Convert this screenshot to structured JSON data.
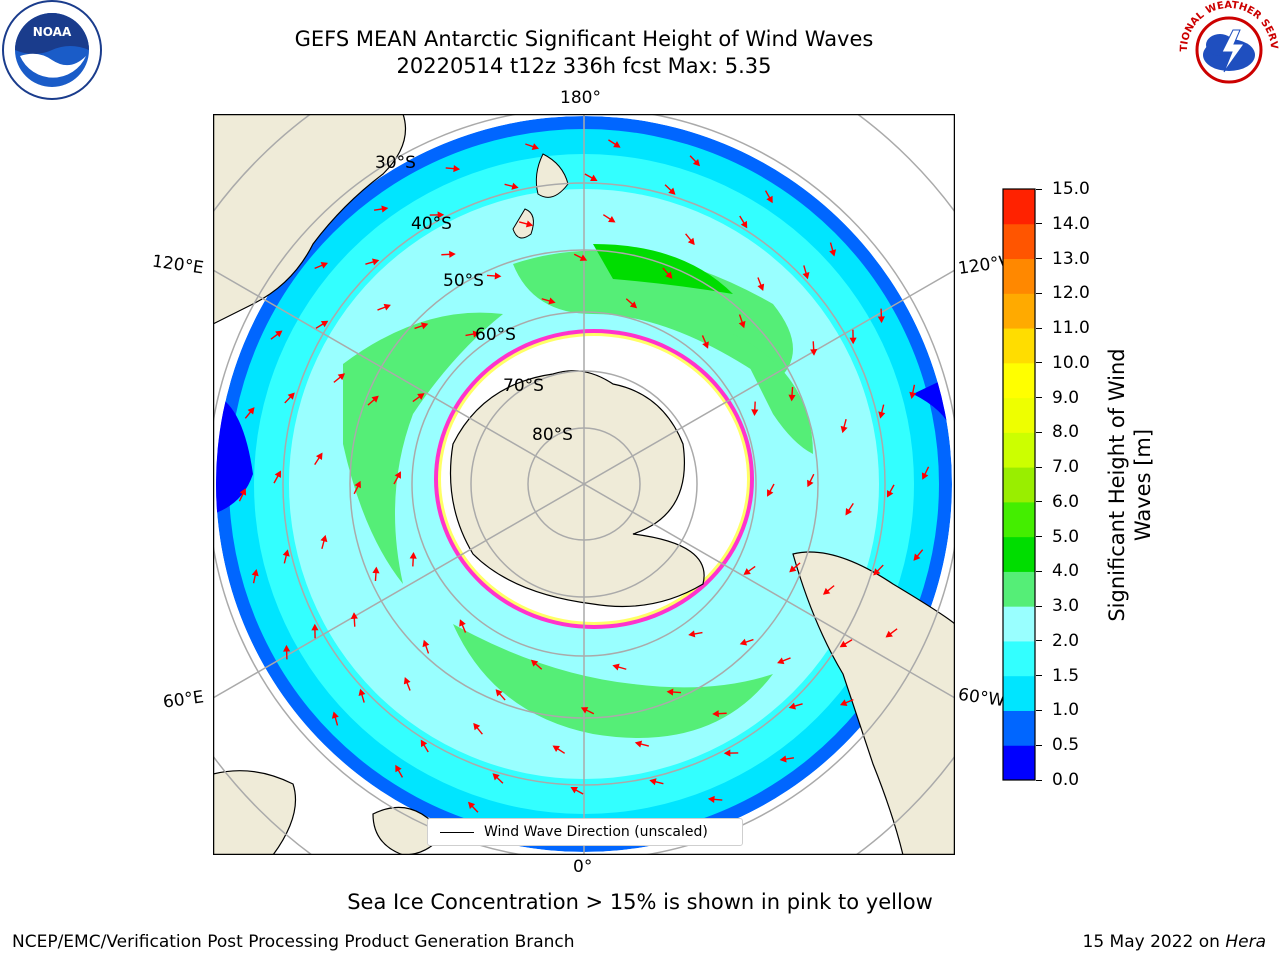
{
  "title": {
    "line1": "GEFS MEAN Antarctic Significant Height of Wind Waves",
    "line2": "20220514 t12z 336h fcst   Max: 5.35"
  },
  "map": {
    "projection": "south-polar-stereographic",
    "lon_labels": [
      "180°",
      "120°E",
      "120°W",
      "60°E",
      "60°W",
      "0°"
    ],
    "lat_labels": [
      "30°S",
      "40°S",
      "50°S",
      "60°S",
      "70°S",
      "80°S"
    ],
    "legend_label": "Wind Wave Direction (unscaled)",
    "colors": {
      "land": "#efebd8",
      "ice": "#ffffff",
      "ice_edge": "#ff33cc",
      "arrow": "#ff0000"
    }
  },
  "colorbar": {
    "title": "Significant Height of Wind Waves [m]",
    "ticks": [
      "0.0",
      "0.5",
      "1.0",
      "1.5",
      "2.0",
      "3.0",
      "4.0",
      "5.0",
      "6.0",
      "7.0",
      "8.0",
      "9.0",
      "10.0",
      "11.0",
      "12.0",
      "13.0",
      "14.0",
      "15.0"
    ],
    "colors": [
      "#0000ff",
      "#0066ff",
      "#00e5ff",
      "#33ffff",
      "#99ffff",
      "#55ee77",
      "#00dd00",
      "#44ee00",
      "#99ee00",
      "#ccff00",
      "#eeff00",
      "#ffff00",
      "#ffdd00",
      "#ffaa00",
      "#ff8800",
      "#ff5500",
      "#ff2200"
    ]
  },
  "logos": {
    "left": "NOAA",
    "right": "NATIONAL WEATHER SERVICE"
  },
  "footer": {
    "note": "Sea Ice Concentration > 15% is shown in pink to yellow",
    "credit_left": "NCEP/EMC/Verification Post Processing Product Generation Branch",
    "credit_date": "15 May 2022 on ",
    "credit_host": "Hera"
  }
}
